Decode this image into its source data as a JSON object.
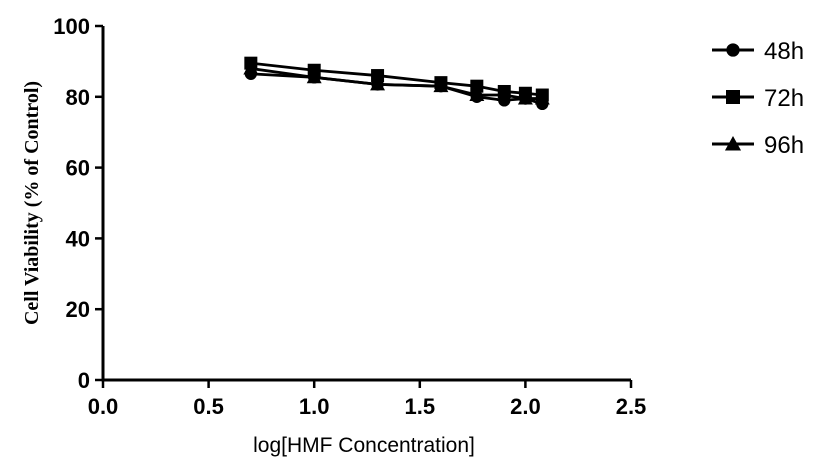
{
  "chart_data": {
    "type": "line",
    "title": "",
    "xlabel": "log[HMF Concentration]",
    "ylabel": "Cell Viability (% of Control)",
    "xlim": [
      0.0,
      2.5
    ],
    "ylim": [
      0,
      100
    ],
    "xticks": [
      "0.0",
      "0.5",
      "1.0",
      "1.5",
      "2.0",
      "2.5"
    ],
    "yticks": [
      "0",
      "20",
      "40",
      "60",
      "80",
      "100"
    ],
    "grid": false,
    "legend_position": "top-right",
    "x": [
      0.7,
      1.0,
      1.3,
      1.6,
      1.77,
      1.9,
      2.0,
      2.08
    ],
    "series": [
      {
        "name": "48h",
        "marker": "circle",
        "color": "#000000",
        "values": [
          86.5,
          85.5,
          83.5,
          83.0,
          80.0,
          79.0,
          79.5,
          78.0
        ]
      },
      {
        "name": "72h",
        "marker": "square",
        "color": "#000000",
        "values": [
          89.5,
          87.5,
          86.0,
          84.0,
          83.0,
          81.5,
          81.0,
          80.5
        ]
      },
      {
        "name": "96h",
        "marker": "triangle",
        "color": "#000000",
        "values": [
          88.0,
          85.5,
          83.5,
          83.0,
          80.5,
          80.5,
          79.5,
          79.5
        ]
      }
    ]
  }
}
